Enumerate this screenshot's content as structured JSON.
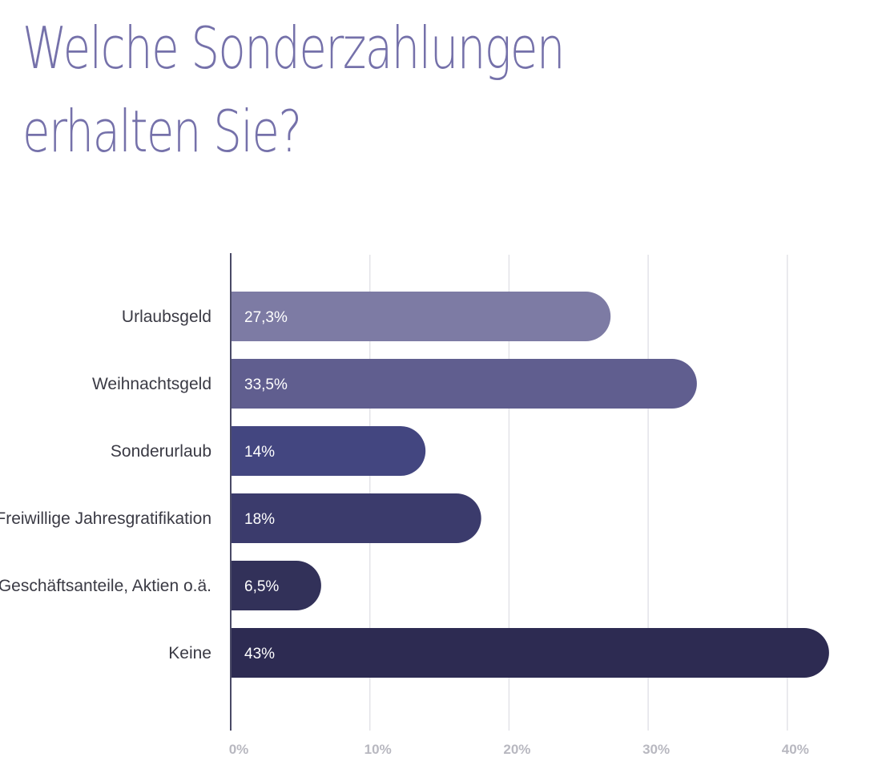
{
  "chart_data": {
    "type": "bar",
    "orientation": "horizontal",
    "title_lines": [
      "Welche Sonderzahlungen",
      "erhalten Sie?"
    ],
    "categories": [
      "Urlaubsgeld",
      "Weihnachtsgeld",
      "Sonderurlaub",
      "Freiwillige Jahresgratifikation",
      "Geschäftsanteile, Aktien o.ä.",
      "Keine"
    ],
    "values": [
      27.3,
      33.5,
      14,
      18,
      6.5,
      43
    ],
    "value_labels": [
      "27,3%",
      "33,5%",
      "14%",
      "18%",
      "6,5%",
      "43%"
    ],
    "bar_colors": [
      "#7d7ba4",
      "#605e8f",
      "#434680",
      "#3b3b6c",
      "#323159",
      "#2d2b52"
    ],
    "xlim": [
      0,
      45
    ],
    "ticks": [
      0,
      10,
      20,
      30,
      40
    ],
    "tick_labels": [
      "0%",
      "10%",
      "20%",
      "30%",
      "40%"
    ],
    "grid": true,
    "legend": "none"
  }
}
